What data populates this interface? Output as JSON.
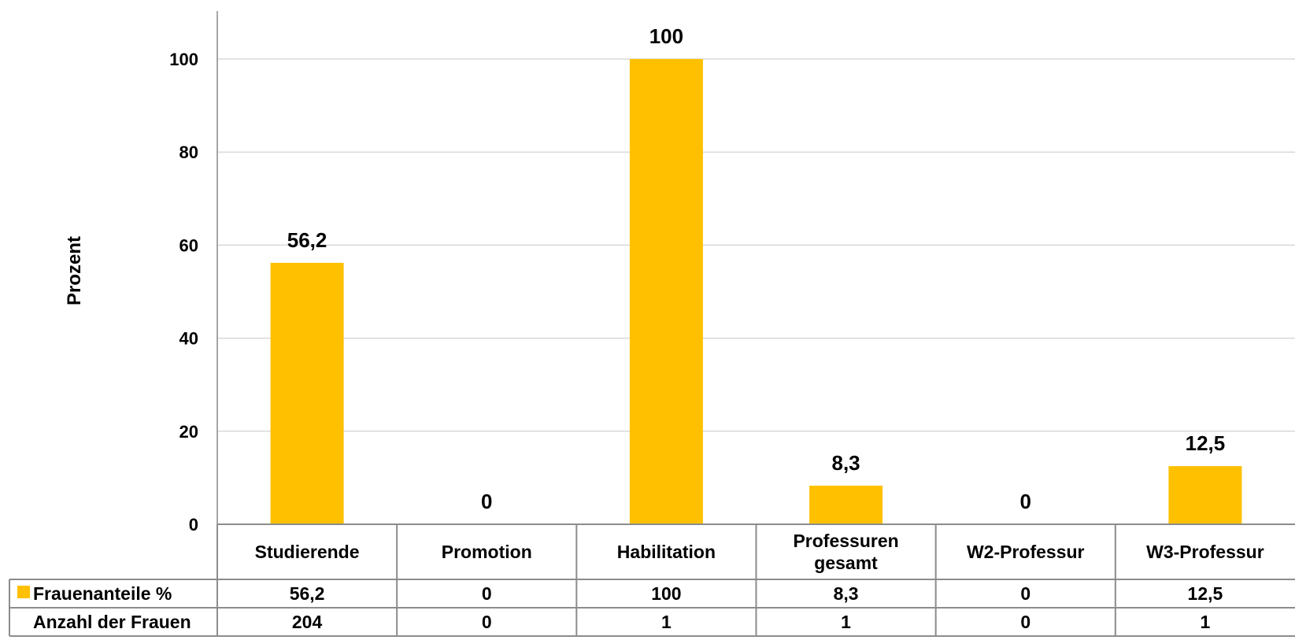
{
  "chart_data": {
    "type": "bar",
    "categories": [
      [
        "Studierende"
      ],
      [
        "Promotion"
      ],
      [
        "Habilitation"
      ],
      [
        "Professuren",
        "gesamt"
      ],
      [
        "W2-Professur"
      ],
      [
        "W3-Professur"
      ]
    ],
    "series": [
      {
        "name": "Frauenanteile %",
        "values": [
          56.2,
          0,
          100,
          8.3,
          0,
          12.5
        ],
        "labels": [
          "56,2",
          "0",
          "100",
          "8,3",
          "0",
          "12,5"
        ],
        "color": "#FFC000"
      }
    ],
    "table_rows": [
      {
        "label": "Frauenanteile %",
        "values": [
          "56,2",
          "0",
          "100",
          "8,3",
          "0",
          "12,5"
        ],
        "legend_key": true
      },
      {
        "label": "Anzahl der Frauen",
        "values": [
          "204",
          "0",
          "1",
          "1",
          "0",
          "1"
        ],
        "legend_key": false
      }
    ],
    "ylabel": "Prozent",
    "ylim": [
      0,
      100
    ],
    "yticks": [
      0,
      20,
      40,
      60,
      80,
      100
    ],
    "grid": true,
    "legend": "data-table"
  }
}
